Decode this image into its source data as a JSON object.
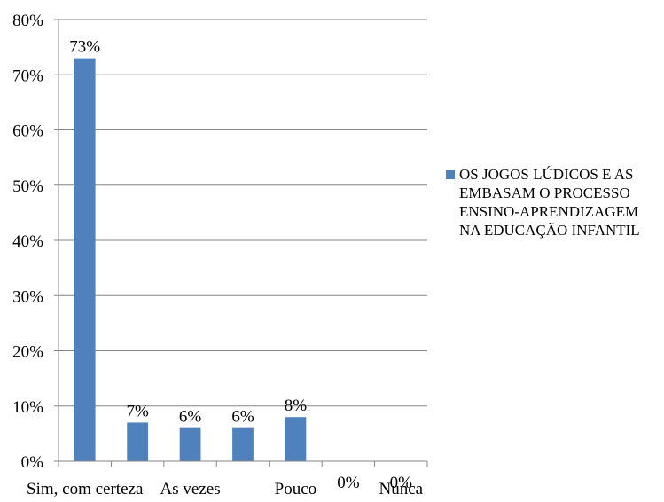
{
  "chart_data": {
    "type": "bar",
    "categories": [
      "Sim, com certeza",
      null,
      "As vezes",
      null,
      "Pouco",
      null,
      "Nunca"
    ],
    "series": [
      {
        "name": "OS JOGOS LÚDICOS E AS EMBASAM O PROCESSO ENSINO-APRENDIZAGEM NA EDUCAÇÃO INFANTIL",
        "color": "#4f81bd",
        "values": [
          73,
          7,
          6,
          6,
          8,
          0,
          0
        ],
        "value_labels": [
          "73%",
          "7%",
          "6%",
          "6%",
          "8%",
          "0%",
          "0%"
        ]
      }
    ],
    "ylim": [
      0,
      80
    ],
    "yticks": [
      {
        "value": 0,
        "label": "0%"
      },
      {
        "value": 10,
        "label": "10%"
      },
      {
        "value": 20,
        "label": "20%"
      },
      {
        "value": 30,
        "label": "30%"
      },
      {
        "value": 40,
        "label": "40%"
      },
      {
        "value": 50,
        "label": "50%"
      },
      {
        "value": 60,
        "label": "60%"
      },
      {
        "value": 70,
        "label": "70%"
      },
      {
        "value": 80,
        "label": "80%"
      }
    ],
    "grid": true,
    "legend": "right"
  }
}
